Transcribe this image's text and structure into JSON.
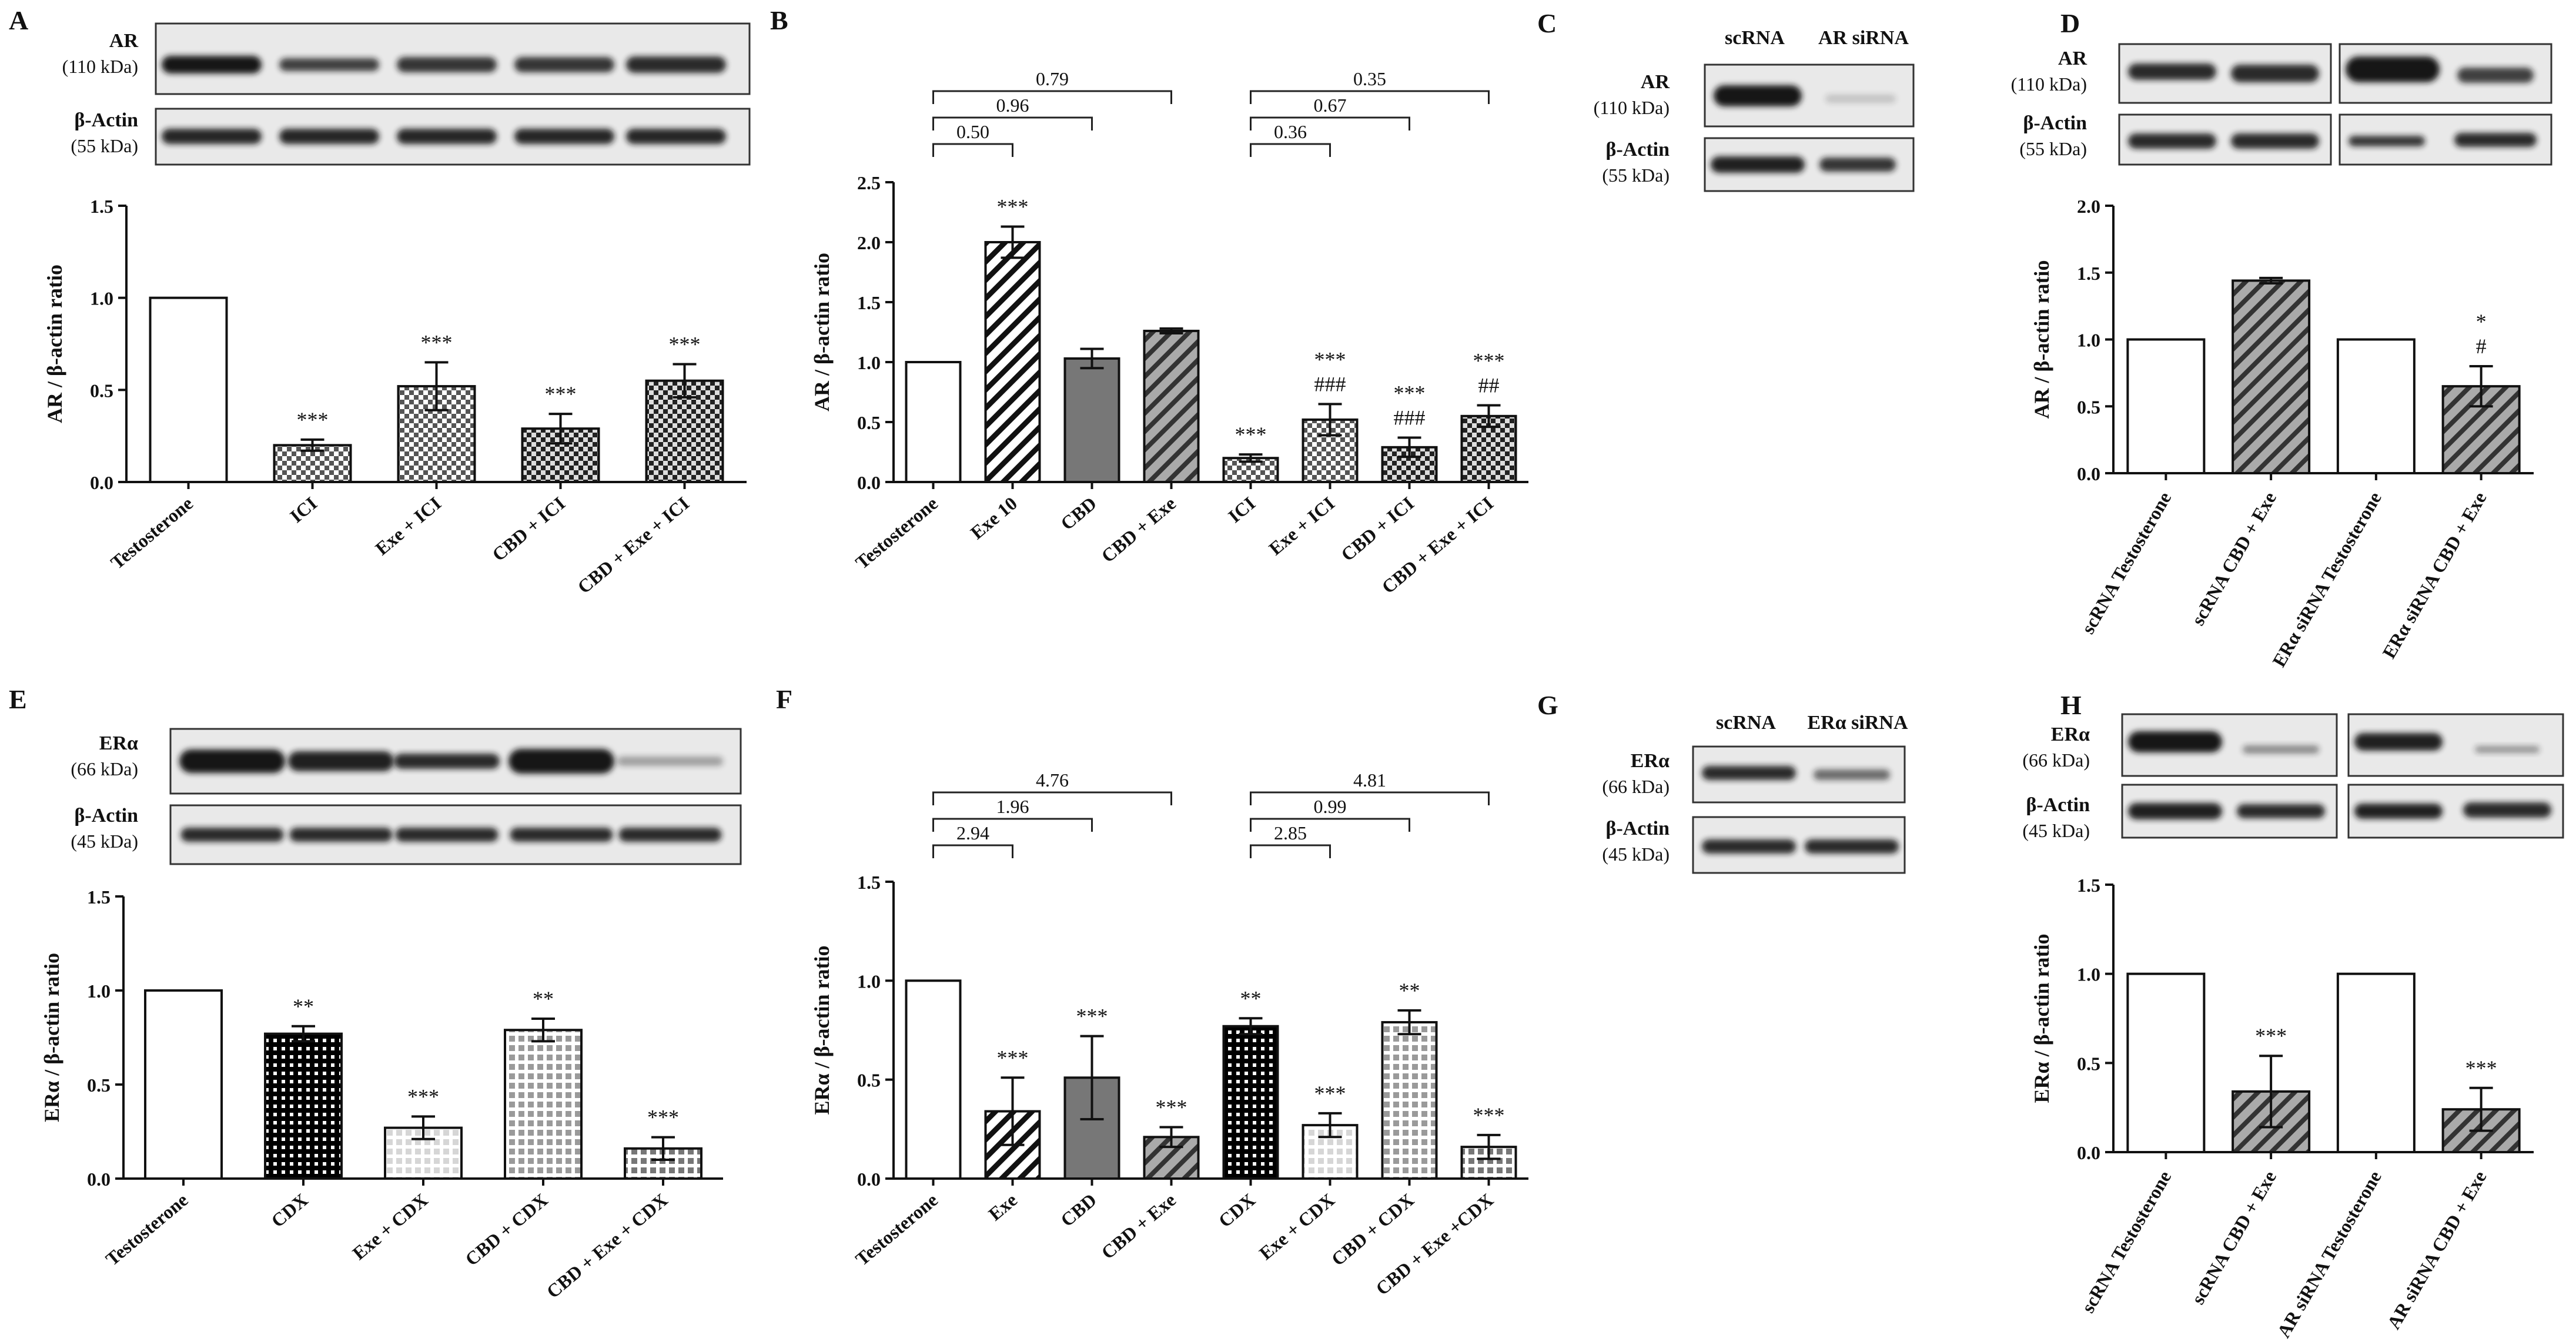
{
  "colors": {
    "ink": "#111111",
    "dark_gray": "#777777",
    "band": "#151515",
    "blot_bg": "#e9e9e9"
  },
  "blots": {
    "A": {
      "protein": "AR",
      "protein_kda": "(110 kDa)",
      "control": "β-Actin",
      "control_kda": "(55 kDa)"
    },
    "C": {
      "lanes": [
        "scRNA",
        "AR siRNA"
      ],
      "protein": "AR",
      "protein_kda": "(110 kDa)",
      "control": "β-Actin",
      "control_kda": "(55 kDa)"
    },
    "D": {
      "protein": "AR",
      "protein_kda": "(110 kDa)",
      "control": "β-Actin",
      "control_kda": "(55 kDa)"
    },
    "E": {
      "protein": "ERα",
      "protein_kda": "(66 kDa)",
      "control": "β-Actin",
      "control_kda": "(45 kDa)"
    },
    "G": {
      "lanes": [
        "scRNA",
        "ERα siRNA"
      ],
      "protein": "ERα",
      "protein_kda": "(66 kDa)",
      "control": "β-Actin",
      "control_kda": "(45 kDa)"
    },
    "H": {
      "protein": "ERα",
      "protein_kda": "(66 kDa)",
      "control": "β-Actin",
      "control_kda": "(45 kDa)"
    }
  },
  "chart_data": [
    {
      "panel": "A",
      "type": "bar",
      "title": "",
      "xlabel": "",
      "ylabel": "AR / β-actin ratio",
      "ylim": [
        0,
        1.5
      ],
      "yticks": [
        "0.0",
        "0.5",
        "1.0",
        "1.5"
      ],
      "categories": [
        "Testosterone",
        "ICI",
        "Exe + ICI",
        "CBD + ICI",
        "CBD + Exe + ICI"
      ],
      "values": [
        1.0,
        0.2,
        0.52,
        0.29,
        0.55
      ],
      "errors": [
        0,
        0.03,
        0.13,
        0.08,
        0.09
      ],
      "significance": [
        [],
        [
          "***"
        ],
        [
          "***"
        ],
        [
          "***"
        ],
        [
          "***"
        ]
      ],
      "brackets": []
    },
    {
      "panel": "B",
      "type": "bar",
      "title": "",
      "xlabel": "",
      "ylabel": "AR / β-actin ratio",
      "ylim": [
        0,
        2.5
      ],
      "yticks": [
        "0.0",
        "0.5",
        "1.0",
        "1.5",
        "2.0",
        "2.5"
      ],
      "categories": [
        "Testosterone",
        "Exe 10",
        "CBD",
        "CBD + Exe",
        "ICI",
        "Exe + ICI",
        "CBD + ICI",
        "CBD + Exe + ICI"
      ],
      "values": [
        1.0,
        2.0,
        1.03,
        1.26,
        0.2,
        0.52,
        0.29,
        0.55
      ],
      "errors": [
        0,
        0.13,
        0.08,
        0.02,
        0.03,
        0.13,
        0.08,
        0.09
      ],
      "significance": [
        [],
        [
          "***"
        ],
        [],
        [],
        [
          "***"
        ],
        [
          "###",
          "***"
        ],
        [
          "###",
          "***"
        ],
        [
          "##",
          "***"
        ]
      ],
      "brackets": [
        {
          "from": 0,
          "to": 1,
          "label": "0.50"
        },
        {
          "from": 0,
          "to": 2,
          "label": "0.96"
        },
        {
          "from": 0,
          "to": 3,
          "label": "0.79"
        },
        {
          "from": 4,
          "to": 5,
          "label": "0.36"
        },
        {
          "from": 4,
          "to": 6,
          "label": "0.67"
        },
        {
          "from": 4,
          "to": 7,
          "label": "0.35"
        }
      ]
    },
    {
      "panel": "D",
      "type": "bar",
      "title": "",
      "xlabel": "",
      "ylabel": "AR / β-actin ratio",
      "ylim": [
        0,
        2.0
      ],
      "yticks": [
        "0.0",
        "0.5",
        "1.0",
        "1.5",
        "2.0"
      ],
      "categories": [
        "scRNA Testosterone",
        "scRNA CBD + Exe",
        "ERα siRNA Testosterone",
        "ERα siRNA CBD + Exe"
      ],
      "values": [
        1.0,
        1.44,
        1.0,
        0.65
      ],
      "errors": [
        0,
        0.02,
        0,
        0.15
      ],
      "significance": [
        [],
        [],
        [],
        [
          "#",
          "*"
        ]
      ],
      "brackets": []
    },
    {
      "panel": "E",
      "type": "bar",
      "title": "",
      "xlabel": "",
      "ylabel": "ERα / β-actin ratio",
      "ylim": [
        0,
        1.5
      ],
      "yticks": [
        "0.0",
        "0.5",
        "1.0",
        "1.5"
      ],
      "categories": [
        "Testosterone",
        "CDX",
        "Exe + CDX",
        "CBD + CDX",
        "CBD + Exe + CDX"
      ],
      "values": [
        1.0,
        0.77,
        0.27,
        0.79,
        0.16
      ],
      "errors": [
        0,
        0.04,
        0.06,
        0.06,
        0.06
      ],
      "significance": [
        [],
        [
          "**"
        ],
        [
          "***"
        ],
        [
          "**"
        ],
        [
          "***"
        ]
      ],
      "brackets": []
    },
    {
      "panel": "F",
      "type": "bar",
      "title": "",
      "xlabel": "",
      "ylabel": "ERα / β-actin ratio",
      "ylim": [
        0,
        1.5
      ],
      "yticks": [
        "0.0",
        "0.5",
        "1.0",
        "1.5"
      ],
      "categories": [
        "Testosterone",
        "Exe",
        "CBD",
        "CBD + Exe",
        "CDX",
        "Exe + CDX",
        "CBD + CDX",
        "CBD + Exe +CDX"
      ],
      "values": [
        1.0,
        0.34,
        0.51,
        0.21,
        0.77,
        0.27,
        0.79,
        0.16
      ],
      "errors": [
        0,
        0.17,
        0.21,
        0.05,
        0.04,
        0.06,
        0.06,
        0.06
      ],
      "significance": [
        [],
        [
          "***"
        ],
        [
          "***"
        ],
        [
          "***"
        ],
        [
          "**"
        ],
        [
          "***"
        ],
        [
          "**"
        ],
        [
          "***"
        ]
      ],
      "brackets": [
        {
          "from": 0,
          "to": 1,
          "label": "2.94"
        },
        {
          "from": 0,
          "to": 2,
          "label": "1.96"
        },
        {
          "from": 0,
          "to": 3,
          "label": "4.76"
        },
        {
          "from": 4,
          "to": 5,
          "label": "2.85"
        },
        {
          "from": 4,
          "to": 6,
          "label": "0.99"
        },
        {
          "from": 4,
          "to": 7,
          "label": "4.81"
        }
      ]
    },
    {
      "panel": "H",
      "type": "bar",
      "title": "",
      "xlabel": "",
      "ylabel": "ERα / β-actin ratio",
      "ylim": [
        0,
        1.5
      ],
      "yticks": [
        "0.0",
        "0.5",
        "1.0",
        "1.5"
      ],
      "categories": [
        "scRNA Testosterone",
        "scRNA CBD + Exe",
        "AR siRNA Testosterone",
        "AR siRNA CBD + Exe"
      ],
      "values": [
        1.0,
        0.34,
        1.0,
        0.24
      ],
      "errors": [
        0,
        0.2,
        0,
        0.12
      ],
      "significance": [
        [],
        [
          "***"
        ],
        [],
        [
          "***"
        ]
      ],
      "brackets": []
    }
  ]
}
